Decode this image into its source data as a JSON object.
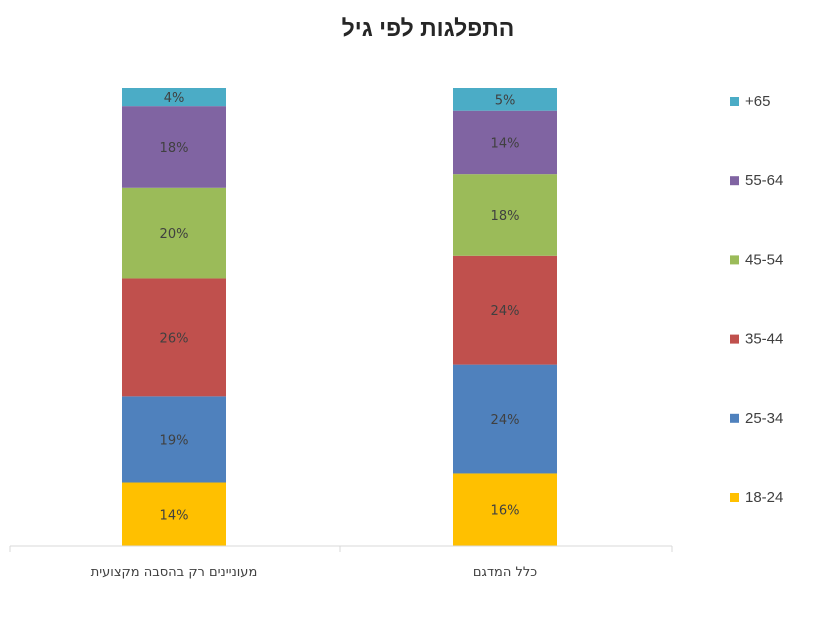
{
  "chart_data": {
    "type": "bar",
    "stacked": true,
    "percent_stacked": true,
    "title": "התפלגות לפי גיל",
    "categories": [
      "כלל המדגם",
      "מעוניינים רק בהסבה מקצועית"
    ],
    "series": [
      {
        "name": "18-24",
        "color": "#FFC000",
        "values": [
          16,
          14
        ],
        "labels": [
          "16%",
          "14%"
        ]
      },
      {
        "name": "25-34",
        "color": "#4F81BD",
        "values": [
          24,
          19
        ],
        "labels": [
          "24%",
          "19%"
        ]
      },
      {
        "name": "35-44",
        "color": "#C0504D",
        "values": [
          24,
          26
        ],
        "labels": [
          "24%",
          "26%"
        ]
      },
      {
        "name": "45-54",
        "color": "#9BBB59",
        "values": [
          18,
          20
        ],
        "labels": [
          "18%",
          "20%"
        ]
      },
      {
        "name": "55-64",
        "color": "#8064A2",
        "values": [
          14,
          18
        ],
        "labels": [
          "14%",
          "18%"
        ]
      },
      {
        "name": "+65",
        "color": "#4BACC6",
        "values": [
          5,
          4
        ],
        "labels": [
          "5%",
          "4%"
        ]
      }
    ],
    "legend": "right",
    "grid": false,
    "ylim": [
      0,
      100
    ],
    "category_order": "right-to-left"
  }
}
